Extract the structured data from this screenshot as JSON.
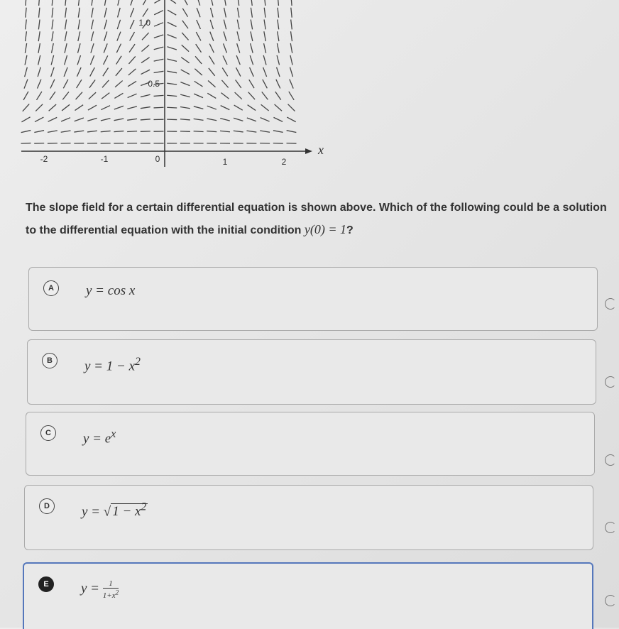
{
  "graph": {
    "y_ticks": [
      "1.0",
      "0.5"
    ],
    "x_ticks": [
      "-2",
      "-1",
      "0",
      "1",
      "2"
    ],
    "x_label": "x"
  },
  "question": {
    "text": "The slope field for a certain differential equation is shown above. Which of the following could be a solution to the differential equation with the initial condition",
    "condition": "y(0) = 1",
    "end": "?"
  },
  "options": [
    {
      "letter": "A",
      "formula": "y = cos x"
    },
    {
      "letter": "B",
      "formula": "y = 1 − x",
      "exponent": "2"
    },
    {
      "letter": "C",
      "formula": "y = e",
      "exponent": "x"
    },
    {
      "letter": "D",
      "formula": "y =",
      "radicand": "1 − x",
      "exponent": "2"
    },
    {
      "letter": "E",
      "formula": "y =",
      "numerator": "1",
      "denominator": "1+x",
      "exponent": "2"
    }
  ]
}
